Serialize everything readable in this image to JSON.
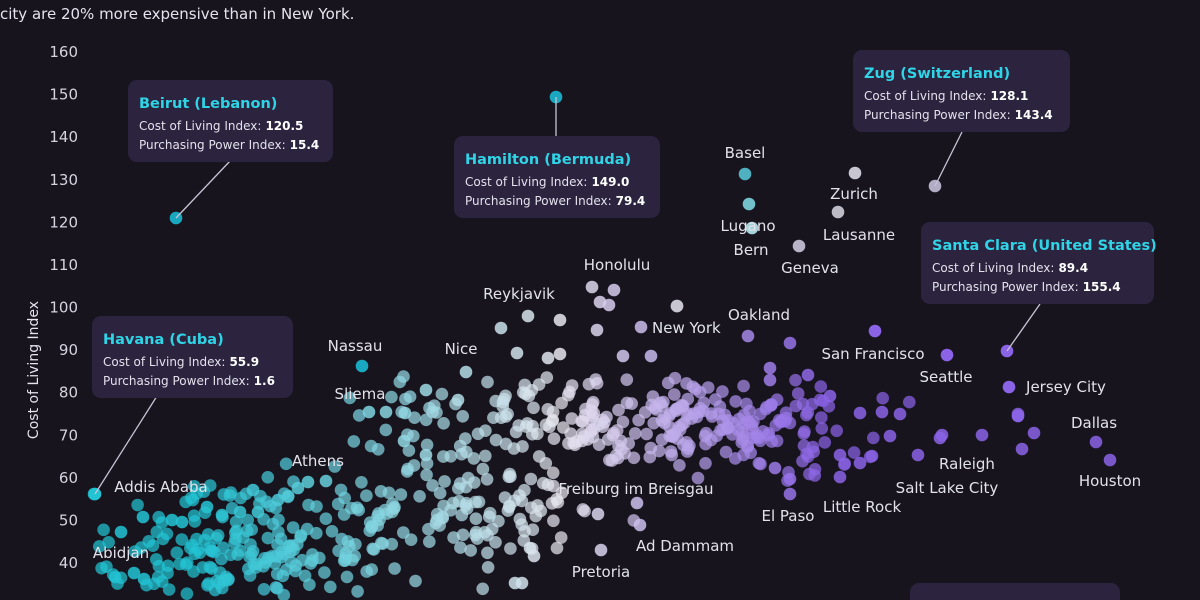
{
  "intro_text": "city are 20% more expensive than in New York.",
  "colors": {
    "background": "#17141e",
    "teal": "#22c3d3",
    "white": "#e8e6ee",
    "purple": "#8b63e6",
    "tooltip_bg": "#2c233f",
    "tooltip_title": "#2fd4e6"
  },
  "chart_data": {
    "type": "scatter",
    "ylabel": "Cost of Living Index",
    "xlabel": "",
    "ylim": [
      30,
      160
    ],
    "yticks": [
      "160",
      "150",
      "140",
      "130",
      "120",
      "110",
      "100",
      "90",
      "80",
      "70",
      "60",
      "50",
      "40"
    ],
    "color_scale": "x axis (Purchasing Power Index): teal (low) → white → purple (high)",
    "labeled_points": [
      {
        "name": "Beirut",
        "x": 15.4,
        "y": 120.5
      },
      {
        "name": "Hamilton",
        "x": 79.4,
        "y": 149.0
      },
      {
        "name": "Zug",
        "x": 143.4,
        "y": 128.1
      },
      {
        "name": "Santa Clara",
        "x": 155.4,
        "y": 89.4
      },
      {
        "name": "Havana",
        "x": 1.6,
        "y": 55.9
      },
      {
        "name": "Basel",
        "x": 123,
        "y": 131
      },
      {
        "name": "Lugano",
        "x": 123,
        "y": 124
      },
      {
        "name": "Bern",
        "x": 124,
        "y": 118
      },
      {
        "name": "Zurich",
        "x": 137,
        "y": 131.5
      },
      {
        "name": "Lausanne",
        "x": 135,
        "y": 122.5
      },
      {
        "name": "Geneva",
        "x": 130,
        "y": 114.5
      },
      {
        "name": "Honolulu",
        "x": 94,
        "y": 105
      },
      {
        "name": "Reykjavik",
        "x": 84,
        "y": 98
      },
      {
        "name": "New York",
        "x": 100,
        "y": 100
      },
      {
        "name": "Oakland",
        "x": 124,
        "y": 93
      },
      {
        "name": "Nassau",
        "x": 50,
        "y": 86
      },
      {
        "name": "Nice",
        "x": 69,
        "y": 85
      },
      {
        "name": "San Francisco",
        "x": 146,
        "y": 94
      },
      {
        "name": "Seattle",
        "x": 150,
        "y": 89
      },
      {
        "name": "Sliema",
        "x": 52,
        "y": 75
      },
      {
        "name": "Jersey City",
        "x": 156,
        "y": 81
      },
      {
        "name": "Dallas",
        "x": 171,
        "y": 68
      },
      {
        "name": "Houston",
        "x": 173,
        "y": 64
      },
      {
        "name": "Raleigh",
        "x": 145,
        "y": 70
      },
      {
        "name": "Salt Lake City",
        "x": 156,
        "y": 66.5
      },
      {
        "name": "Little Rock",
        "x": 132,
        "y": 62
      },
      {
        "name": "El Paso",
        "x": 128,
        "y": 58
      },
      {
        "name": "Freiburg im Breisgau",
        "x": 96,
        "y": 55
      },
      {
        "name": "Ad Dammam",
        "x": 102,
        "y": 49
      },
      {
        "name": "Pretoria",
        "x": 96,
        "y": 43
      },
      {
        "name": "Athens",
        "x": 45,
        "y": 59
      },
      {
        "name": "Addis Ababa",
        "x": 9,
        "y": 51
      },
      {
        "name": "Abidjan",
        "x": 4,
        "y": 47
      }
    ]
  },
  "labels": {
    "y_axis_title": "Cost of Living Index",
    "cities": [
      {
        "id": "basel",
        "text": "Basel"
      },
      {
        "id": "lugano",
        "text": "Lugano"
      },
      {
        "id": "bern",
        "text": "Bern"
      },
      {
        "id": "zurich",
        "text": "Zurich"
      },
      {
        "id": "lausanne",
        "text": "Lausanne"
      },
      {
        "id": "geneva",
        "text": "Geneva"
      },
      {
        "id": "honolulu",
        "text": "Honolulu"
      },
      {
        "id": "reykjavik",
        "text": "Reykjavik"
      },
      {
        "id": "new-york",
        "text": "New York"
      },
      {
        "id": "oakland",
        "text": "Oakland"
      },
      {
        "id": "nassau",
        "text": "Nassau"
      },
      {
        "id": "nice",
        "text": "Nice"
      },
      {
        "id": "san-francisco",
        "text": "San Francisco"
      },
      {
        "id": "seattle",
        "text": "Seattle"
      },
      {
        "id": "sliema",
        "text": "Sliema"
      },
      {
        "id": "jersey-city",
        "text": "Jersey City"
      },
      {
        "id": "dallas",
        "text": "Dallas"
      },
      {
        "id": "houston",
        "text": "Houston"
      },
      {
        "id": "raleigh",
        "text": "Raleigh"
      },
      {
        "id": "salt-lake-city",
        "text": "Salt Lake City"
      },
      {
        "id": "little-rock",
        "text": "Little Rock"
      },
      {
        "id": "el-paso",
        "text": "El Paso"
      },
      {
        "id": "freiburg",
        "text": "Freiburg im Breisgau"
      },
      {
        "id": "ad-dammam",
        "text": "Ad Dammam"
      },
      {
        "id": "pretoria",
        "text": "Pretoria"
      },
      {
        "id": "athens",
        "text": "Athens"
      },
      {
        "id": "addis-ababa",
        "text": "Addis Ababa"
      },
      {
        "id": "abidjan",
        "text": "Abidjan"
      }
    ]
  },
  "tooltips": [
    {
      "id": "beirut",
      "title": "Beirut (Lebanon)",
      "col_label": "Cost of Living Index:",
      "col_value": "120.5",
      "pp_label": "Purchasing Power Index:",
      "pp_value": "15.4"
    },
    {
      "id": "hamilton",
      "title": "Hamilton (Bermuda)",
      "col_label": "Cost of Living Index:",
      "col_value": "149.0",
      "pp_label": "Purchasing Power Index:",
      "pp_value": "79.4"
    },
    {
      "id": "zug",
      "title": "Zug (Switzerland)",
      "col_label": "Cost of Living Index:",
      "col_value": "128.1",
      "pp_label": "Purchasing Power Index:",
      "pp_value": "143.4"
    },
    {
      "id": "santa-clara",
      "title": "Santa Clara (United States)",
      "col_label": "Cost of Living Index:",
      "col_value": "89.4",
      "pp_label": "Purchasing Power Index:",
      "pp_value": "155.4"
    },
    {
      "id": "havana",
      "title": "Havana (Cuba)",
      "col_label": "Cost of Living Index:",
      "col_value": "55.9",
      "pp_label": "Purchasing Power Index:",
      "pp_value": "1.6"
    }
  ]
}
